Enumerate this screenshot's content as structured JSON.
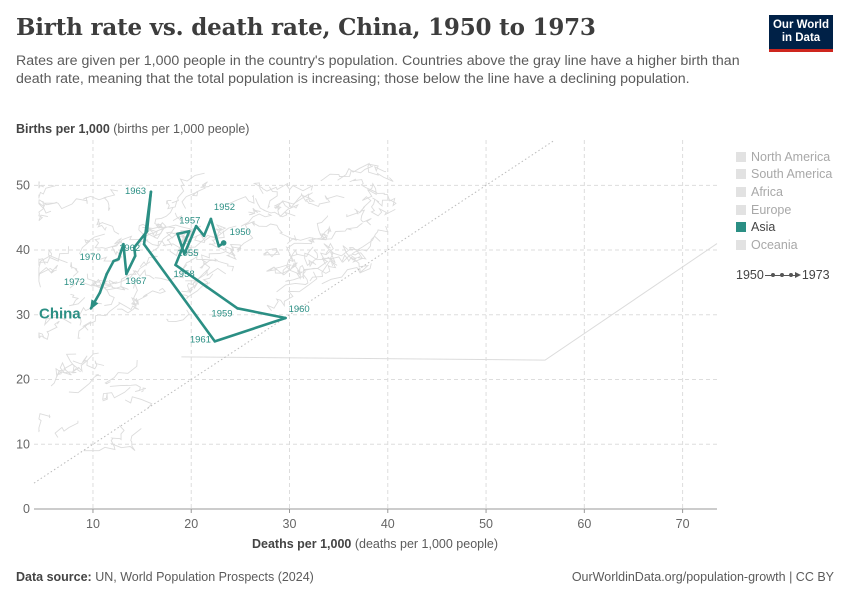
{
  "header": {
    "title": "Birth rate vs. death rate, China, 1950 to 1973",
    "subtitle": "Rates are given per 1,000 people in the country's population. Countries above the gray line have a higher birth than death rate, meaning that the total population is increasing; those below the line have a declining population.",
    "logo_line1": "Our World",
    "logo_line2": "in Data"
  },
  "axes": {
    "y_label_bold": "Births per 1,000",
    "y_label_rest": " (births per 1,000 people)",
    "x_label_bold": "Deaths per 1,000",
    "x_label_rest": " (deaths per 1,000 people)"
  },
  "legend": {
    "items": [
      {
        "label": "North America",
        "active": false
      },
      {
        "label": "South America",
        "active": false
      },
      {
        "label": "Africa",
        "active": false
      },
      {
        "label": "Europe",
        "active": false
      },
      {
        "label": "Asia",
        "active": true
      },
      {
        "label": "Oceania",
        "active": false
      }
    ]
  },
  "timeline": {
    "start": "1950",
    "end": "1973"
  },
  "footer": {
    "source_bold": "Data source:",
    "source_rest": " UN, World Population Prospects (2024)",
    "right": "OurWorldinData.org/population-growth | CC BY"
  },
  "colors": {
    "highlight": "#2b8f84",
    "background_lines": "#dcdcdc",
    "grid": "#dddddd"
  },
  "chart_data": {
    "type": "scatter",
    "title": "Birth rate vs. death rate, China, 1950 to 1973",
    "xlabel": "Deaths per 1,000 (deaths per 1,000 people)",
    "ylabel": "Births per 1,000 (births per 1,000 people)",
    "xlim": [
      4,
      73.5
    ],
    "ylim": [
      0,
      57
    ],
    "x_ticks": [
      10,
      20,
      30,
      40,
      50,
      60,
      70
    ],
    "y_ticks": [
      0,
      10,
      20,
      30,
      40,
      50
    ],
    "grid": true,
    "reference_line": "births = deaths",
    "highlighted_series_name": "China",
    "series": [
      {
        "name": "China",
        "points": [
          {
            "year": 1950,
            "x": 23.3,
            "y": 41.1,
            "label": "1950"
          },
          {
            "year": 1951,
            "x": 22.8,
            "y": 40.6,
            "label": ""
          },
          {
            "year": 1952,
            "x": 22.0,
            "y": 44.8,
            "label": "1952"
          },
          {
            "year": 1953,
            "x": 21.3,
            "y": 42.2,
            "label": ""
          },
          {
            "year": 1954,
            "x": 20.5,
            "y": 43.7,
            "label": ""
          },
          {
            "year": 1955,
            "x": 19.3,
            "y": 39.4,
            "label": "1955"
          },
          {
            "year": 1956,
            "x": 18.6,
            "y": 42.5,
            "label": ""
          },
          {
            "year": 1957,
            "x": 19.8,
            "y": 42.9,
            "label": "1957"
          },
          {
            "year": 1958,
            "x": 18.4,
            "y": 37.7,
            "label": "1958"
          },
          {
            "year": 1959,
            "x": 24.7,
            "y": 31.0,
            "label": "1959"
          },
          {
            "year": 1960,
            "x": 29.6,
            "y": 29.5,
            "label": "1960"
          },
          {
            "year": 1961,
            "x": 22.4,
            "y": 25.9,
            "label": "1961"
          },
          {
            "year": 1962,
            "x": 15.2,
            "y": 40.9,
            "label": "1962"
          },
          {
            "year": 1963,
            "x": 15.9,
            "y": 49.0,
            "label": "1963"
          },
          {
            "year": 1964,
            "x": 15.5,
            "y": 42.9,
            "label": ""
          },
          {
            "year": 1965,
            "x": 14.2,
            "y": 40.4,
            "label": ""
          },
          {
            "year": 1966,
            "x": 14.3,
            "y": 39.1,
            "label": ""
          },
          {
            "year": 1967,
            "x": 13.4,
            "y": 36.3,
            "label": "1967"
          },
          {
            "year": 1968,
            "x": 13.1,
            "y": 40.9,
            "label": ""
          },
          {
            "year": 1969,
            "x": 12.6,
            "y": 38.6,
            "label": ""
          },
          {
            "year": 1970,
            "x": 12.1,
            "y": 38.3,
            "label": "1970"
          },
          {
            "year": 1971,
            "x": 11.4,
            "y": 36.3,
            "label": ""
          },
          {
            "year": 1972,
            "x": 10.7,
            "y": 33.4,
            "label": "1972"
          },
          {
            "year": 1973,
            "x": 9.8,
            "y": 31.0,
            "label": ""
          }
        ]
      }
    ]
  }
}
